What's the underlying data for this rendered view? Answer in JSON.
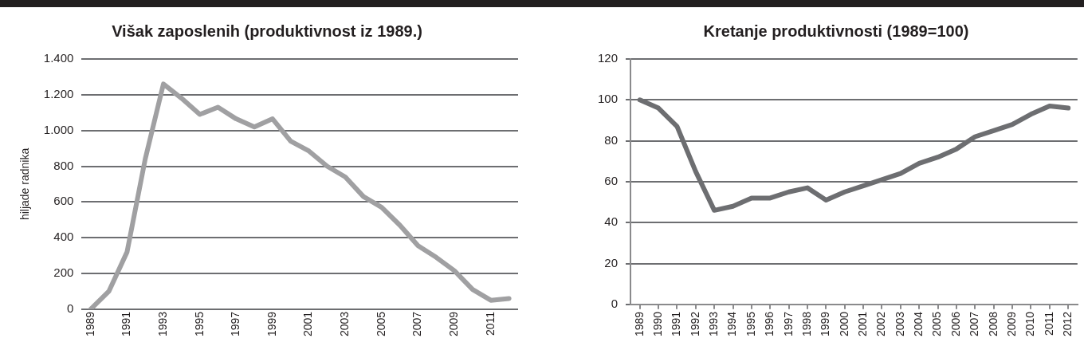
{
  "chart_data": [
    {
      "type": "line",
      "title": "Višak zaposlenih (produktivnost iz 1989.)",
      "ylabel": "hiljade radnika",
      "categories": [
        "1989",
        null,
        "1991",
        null,
        "1993",
        null,
        "1995",
        null,
        "1997",
        null,
        "1999",
        null,
        "2001",
        null,
        "2003",
        null,
        "2005",
        null,
        "2007",
        null,
        "2009",
        null,
        "2011",
        null
      ],
      "series": [
        {
          "color": "#a0a0a2",
          "values": [
            0,
            100,
            320,
            840,
            1260,
            1180,
            1090,
            1130,
            1065,
            1020,
            1065,
            940,
            885,
            800,
            740,
            630,
            570,
            470,
            355,
            290,
            215,
            110,
            50,
            60
          ]
        }
      ],
      "ylim": [
        0,
        1400
      ],
      "yticks": [
        0,
        {
          "value": 200,
          "label": "200"
        },
        {
          "value": 400,
          "label": "400"
        },
        {
          "value": 600,
          "label": "600"
        },
        {
          "value": 800,
          "label": "800"
        },
        {
          "value": 1000,
          "label": "1.000"
        },
        {
          "value": 1200,
          "label": "1.200"
        },
        {
          "value": 1400,
          "label": "1.400"
        }
      ],
      "grid": "y",
      "legend": false,
      "marker": "none",
      "line_style": "solid"
    },
    {
      "type": "line",
      "title": "Kretanje produktivnosti (1989=100)",
      "categories": [
        "1989",
        "1990",
        "1991",
        "1992",
        "1993",
        "1994",
        "1995",
        "1996",
        "1997",
        "1998",
        "1999",
        "2000",
        "2001",
        "2002",
        "2003",
        "2004",
        "2005",
        "2006",
        "2007",
        "2008",
        "2009",
        "2010",
        "2011",
        "2012"
      ],
      "series": [
        {
          "color": "#6d6e71",
          "values": [
            100,
            96,
            87,
            65,
            46,
            48,
            52,
            52,
            55,
            57,
            51,
            55,
            58,
            61,
            64,
            69,
            72,
            76,
            82,
            85,
            88,
            93,
            97,
            96
          ]
        }
      ],
      "ylim": [
        0,
        120
      ],
      "yticks": [
        0,
        20,
        40,
        60,
        80,
        100,
        120
      ],
      "grid": "y",
      "legend": false,
      "marker": "none",
      "line_style": "solid"
    }
  ]
}
